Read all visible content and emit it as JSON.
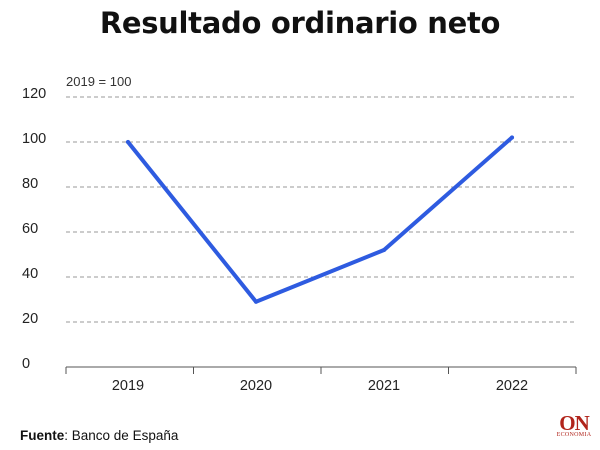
{
  "chart_data": {
    "type": "line",
    "title": "Resultado ordinario neto",
    "subtitle": "2019 = 100",
    "categories": [
      "2019",
      "2020",
      "2021",
      "2022"
    ],
    "series": [
      {
        "values": [
          100,
          29,
          52,
          102
        ],
        "color": "#2e5be0"
      }
    ],
    "ylim": [
      0,
      120
    ],
    "yticks": [
      0,
      20,
      40,
      60,
      80,
      100,
      120
    ],
    "grid": true,
    "legend": "none"
  },
  "source": {
    "label": "Fuente",
    "text": ": Banco de España"
  },
  "logo": {
    "main": "ON",
    "sub": "ECONOMIA"
  }
}
